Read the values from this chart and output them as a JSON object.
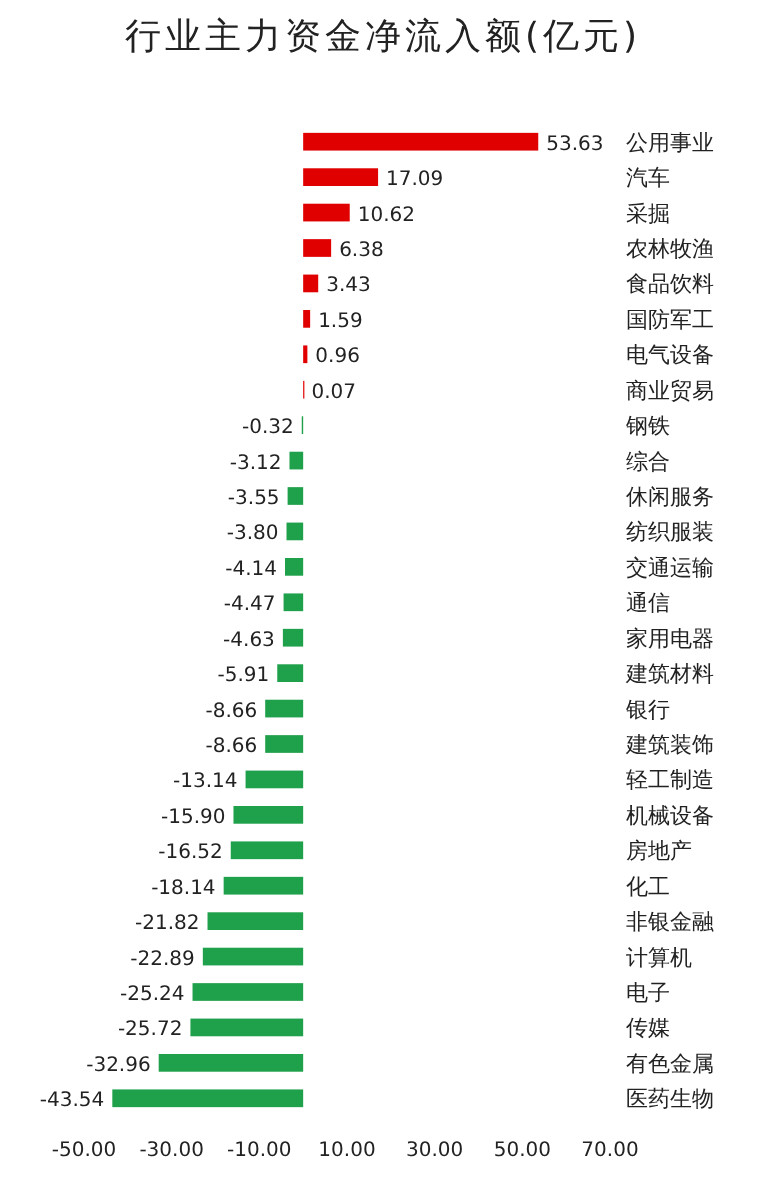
{
  "chart_data": {
    "type": "bar",
    "orientation": "horizontal",
    "title": "行业主力资金净流入额(亿元)",
    "categories": [
      "公用事业",
      "汽车",
      "采掘",
      "农林牧渔",
      "食品饮料",
      "国防军工",
      "电气设备",
      "商业贸易",
      "钢铁",
      "综合",
      "休闲服务",
      "纺织服装",
      "交通运输",
      "通信",
      "家用电器",
      "建筑材料",
      "银行",
      "建筑装饰",
      "轻工制造",
      "机械设备",
      "房地产",
      "化工",
      "非银金融",
      "计算机",
      "电子",
      "传媒",
      "有色金属",
      "医药生物"
    ],
    "values": [
      53.63,
      17.09,
      10.62,
      6.38,
      3.43,
      1.59,
      0.96,
      0.07,
      -0.32,
      -3.12,
      -3.55,
      -3.8,
      -4.14,
      -4.47,
      -4.63,
      -5.91,
      -8.66,
      -8.66,
      -13.14,
      -15.9,
      -16.52,
      -18.14,
      -21.82,
      -22.89,
      -25.24,
      -25.72,
      -32.96,
      -43.54
    ],
    "value_labels": [
      "53.63",
      "17.09",
      "10.62",
      "6.38",
      "3.43",
      "1.59",
      "0.96",
      "0.07",
      "-0.32",
      "-3.12",
      "-3.55",
      "-3.80",
      "-4.14",
      "-4.47",
      "-4.63",
      "-5.91",
      "-8.66",
      "-8.66",
      "-13.14",
      "-15.90",
      "-16.52",
      "-18.14",
      "-21.82",
      "-22.89",
      "-25.24",
      "-25.72",
      "-32.96",
      "-43.54"
    ],
    "colors": [
      "#e00000",
      "#e00000",
      "#e00000",
      "#e00000",
      "#e00000",
      "#e00000",
      "#e00000",
      "#e00000",
      "#1fa04a",
      "#1fa04a",
      "#1fa04a",
      "#1fa04a",
      "#1fa04a",
      "#1fa04a",
      "#1fa04a",
      "#1fa04a",
      "#1fa04a",
      "#1fa04a",
      "#1fa04a",
      "#1fa04a",
      "#1fa04a",
      "#1fa04a",
      "#1fa04a",
      "#1fa04a",
      "#1fa04a",
      "#1fa04a",
      "#1fa04a",
      "#1fa04a"
    ],
    "xlim": [
      -50,
      70
    ],
    "xticks": [
      {
        "value": -50,
        "label": "-50.00"
      },
      {
        "value": -30,
        "label": "-30.00"
      },
      {
        "value": -10,
        "label": "-10.00"
      },
      {
        "value": 10,
        "label": "10.00"
      },
      {
        "value": 30,
        "label": "30.00"
      },
      {
        "value": 50,
        "label": "50.00"
      },
      {
        "value": 70,
        "label": "70.00"
      }
    ],
    "grid": false
  }
}
